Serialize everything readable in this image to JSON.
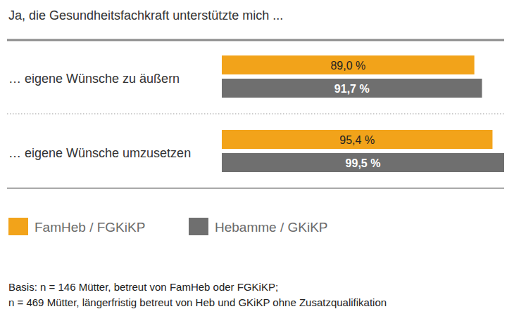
{
  "chart_data": {
    "type": "bar",
    "title": "Ja, die Gesundheitsfachkraft unterstützte mich ...",
    "orientation": "horizontal",
    "categories": [
      "… eigene Wünsche zu äußern",
      "… eigene Wünsche umzusetzen"
    ],
    "series": [
      {
        "name": "FamHeb / FGKiKP",
        "color": "#f2a31a",
        "values": [
          89.0,
          95.4
        ],
        "value_labels": [
          "89,0 %",
          "95,4 %"
        ]
      },
      {
        "name": "Hebamme / GKiKP",
        "color": "#6f6f6f",
        "values": [
          91.7,
          99.5
        ],
        "value_labels": [
          "91,7 %",
          "99,5 %"
        ]
      }
    ],
    "ylim": [
      0,
      100
    ],
    "tick_labels": false,
    "grid": false,
    "data_labels": true,
    "legend": "bottom",
    "annotations": [
      "Basis: n = 146 Mütter, betreut von FamHeb oder FGKiKP;",
      "n = 469 Mütter, längerfristig betreut von Heb und GKiKP ohne Zusatzqualifikation"
    ]
  }
}
